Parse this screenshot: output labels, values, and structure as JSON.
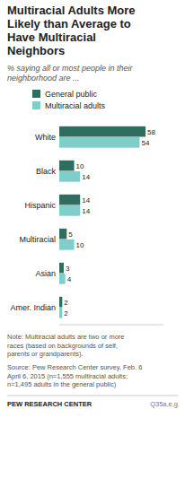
{
  "chart_data": {
    "type": "bar",
    "orientation": "horizontal",
    "title": "Multiracial Adults More\nLikely than Average to\nHave Multiracial\nNeighbors",
    "subtitle": "% saying all or most people in their\nneighborhood are ...",
    "categories": [
      "White",
      "Black",
      "Hispanic",
      "Multiracial",
      "Asian",
      "Amer. Indian"
    ],
    "series": [
      {
        "name": "General public",
        "color": "#2E6E5E",
        "values": [
          58,
          10,
          14,
          5,
          3,
          2
        ]
      },
      {
        "name": "Multiracial adults",
        "color": "#7ECECA",
        "values": [
          54,
          14,
          14,
          10,
          4,
          2
        ]
      }
    ],
    "xlim": [
      0,
      70
    ],
    "data_labels": true,
    "tick_labels": "y",
    "grid": false,
    "annotations": [
      "Note: Multiracial adults are two or more\nraces (based on backgrounds of self,\nparents or grandparents).",
      "Source: Pew Research Center survey, Feb. 6\nApril 6, 2015 (n=1,555 multiracial adults;\nn=1,495 adults in the general public)",
      "PEW RESEARCH CENTER",
      "Q35a,e,g"
    ]
  }
}
